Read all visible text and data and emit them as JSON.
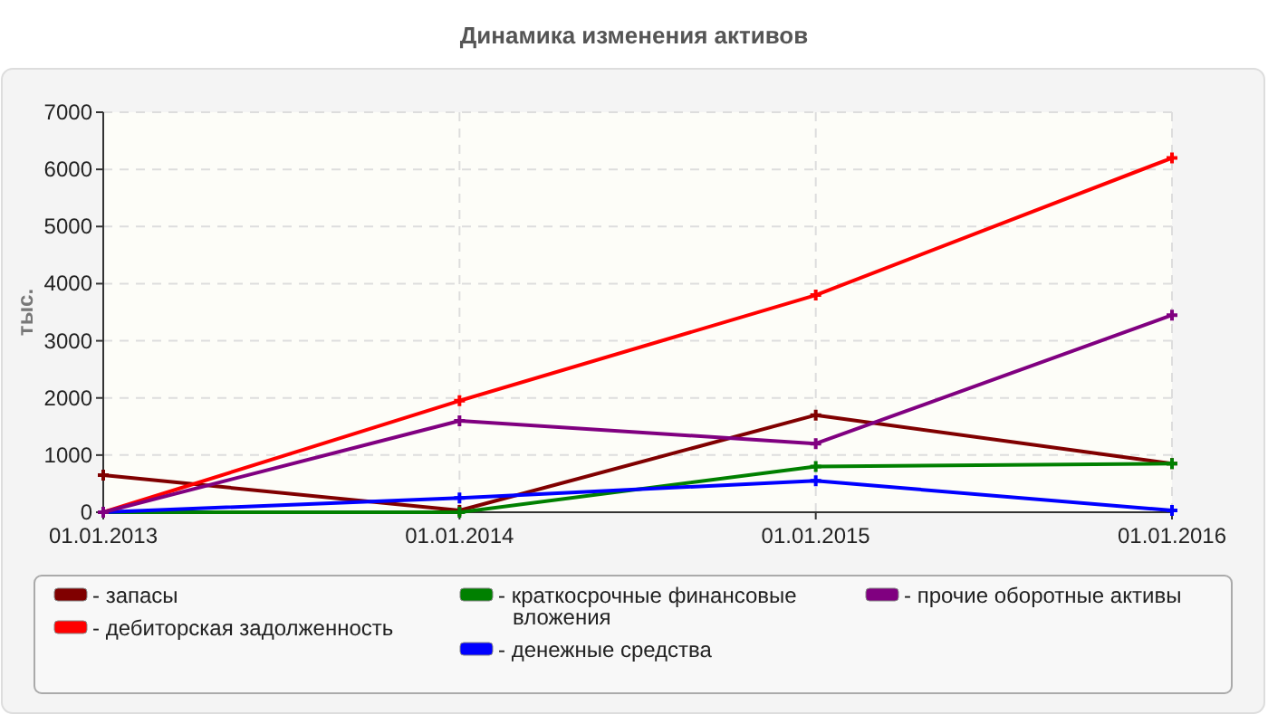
{
  "chart_data": {
    "type": "line",
    "title": "Динамика изменения активов",
    "ylabel": "тыс.",
    "categories": [
      "01.01.2013",
      "01.01.2014",
      "01.01.2015",
      "01.01.2016"
    ],
    "series": [
      {
        "name": "- запасы",
        "color": "#800000",
        "values": [
          650,
          30,
          1700,
          850
        ]
      },
      {
        "name": "- дебиторская задолженность",
        "color": "#ff0000",
        "values": [
          0,
          1950,
          3800,
          6200
        ]
      },
      {
        "name": "- краткосрочные финансовые вложения",
        "color": "#008000",
        "values": [
          0,
          0,
          800,
          850
        ]
      },
      {
        "name": "- денежные средства",
        "color": "#0000ff",
        "values": [
          0,
          250,
          550,
          30
        ]
      },
      {
        "name": "- прочие оборотные активы",
        "color": "#800080",
        "values": [
          0,
          1600,
          1200,
          3450
        ]
      }
    ],
    "ylim": [
      0,
      7000
    ],
    "yticks": [
      0,
      1000,
      2000,
      3000,
      4000,
      5000,
      6000,
      7000
    ],
    "grid": true,
    "legend": "bottom",
    "marker": "cross",
    "line_style": "solid"
  }
}
